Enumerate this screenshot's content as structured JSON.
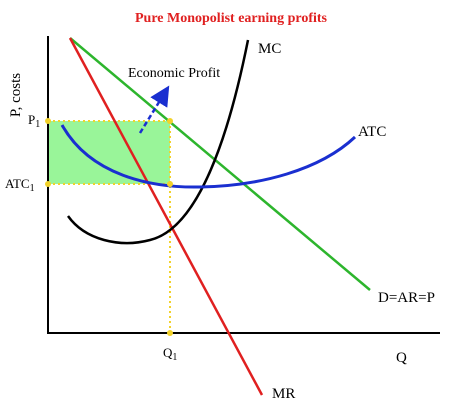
{
  "title": "Pure Monopolist earning profits",
  "y_axis_label": "P, costs",
  "x_axis_label": "Q",
  "curves": {
    "mc": "MC",
    "atc": "ATC",
    "demand": "D=AR=P",
    "mr": "MR"
  },
  "annotation": "Economic Profit",
  "price_label": {
    "text": "P",
    "subscript": "1"
  },
  "cost_label": {
    "text": "ATC",
    "subscript": "1"
  },
  "quantity_label": {
    "text": "Q",
    "subscript": "1"
  }
}
